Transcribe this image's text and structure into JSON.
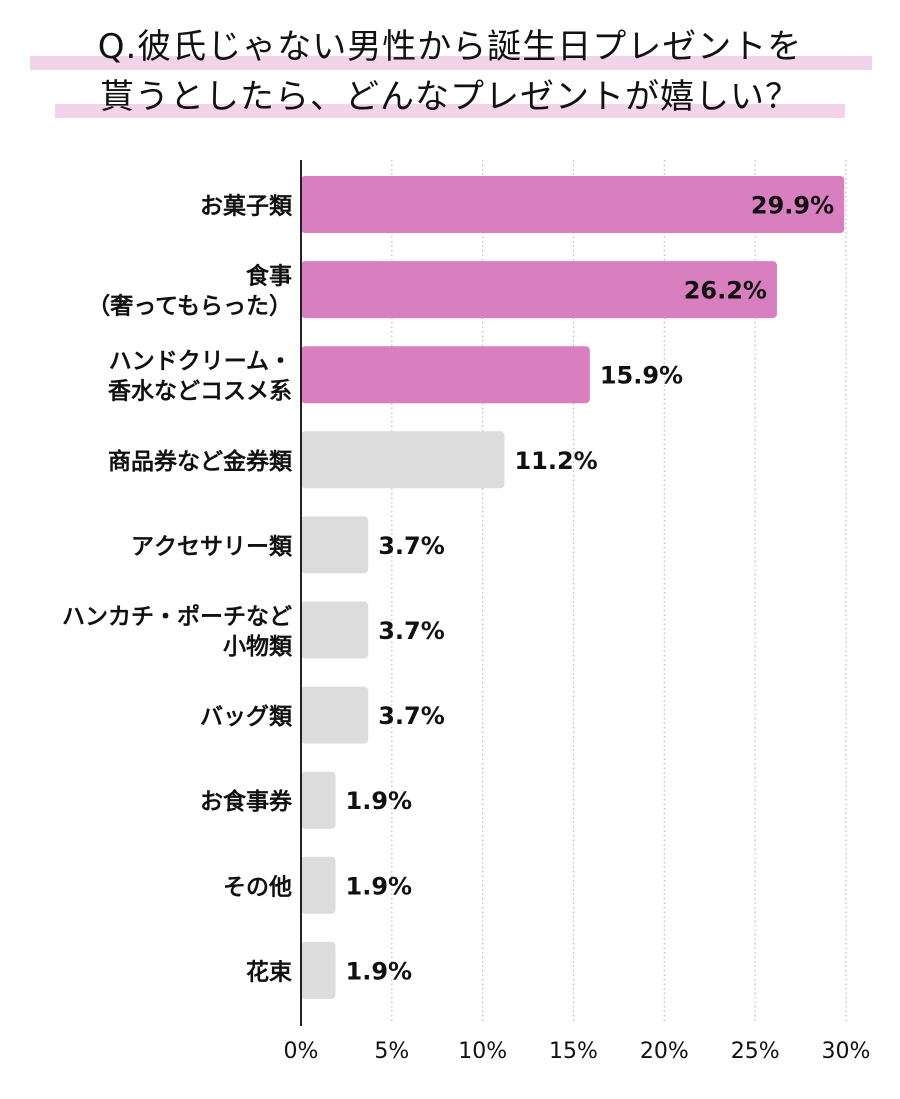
{
  "chart_data": {
    "type": "bar",
    "orientation": "horizontal",
    "title": "Q.彼氏じゃない男性から誕生日プレゼントを貰うとしたら、どんなプレゼントが嬉しい？",
    "title_lines": [
      "Q.彼氏じゃない男性から誕生日プレゼントを",
      "貰うとしたら、どんなプレゼントが嬉しい？"
    ],
    "categories": [
      [
        "お菓子類"
      ],
      [
        "食事",
        "（奢ってもらった）"
      ],
      [
        "ハンドクリーム・",
        "香水などコスメ系"
      ],
      [
        "商品券など金券類"
      ],
      [
        "アクセサリー類"
      ],
      [
        "ハンカチ・ポーチなど",
        "小物類"
      ],
      [
        "バッグ類"
      ],
      [
        "お食事券"
      ],
      [
        "その他"
      ],
      [
        "花束"
      ]
    ],
    "values": [
      29.9,
      26.2,
      15.9,
      11.2,
      3.7,
      3.7,
      3.7,
      1.9,
      1.9,
      1.9
    ],
    "value_labels": [
      "29.9%",
      "26.2%",
      "15.9%",
      "11.2%",
      "3.7%",
      "3.7%",
      "3.7%",
      "1.9%",
      "1.9%",
      "1.9%"
    ],
    "highlighted": [
      true,
      true,
      true,
      false,
      false,
      false,
      false,
      false,
      false,
      false
    ],
    "xlim": [
      0,
      30
    ],
    "ticks": [
      0,
      5,
      10,
      15,
      20,
      25,
      30
    ],
    "tick_labels": [
      "0%",
      "5%",
      "10%",
      "15%",
      "20%",
      "25%",
      "30%"
    ],
    "grid": "vertical dotted",
    "colors": {
      "highlight": "#d97fbf",
      "normal": "#dcdcdc",
      "title_band": "#f3d3ea",
      "grid": "#bbbbbb",
      "axis": "#222222"
    }
  }
}
